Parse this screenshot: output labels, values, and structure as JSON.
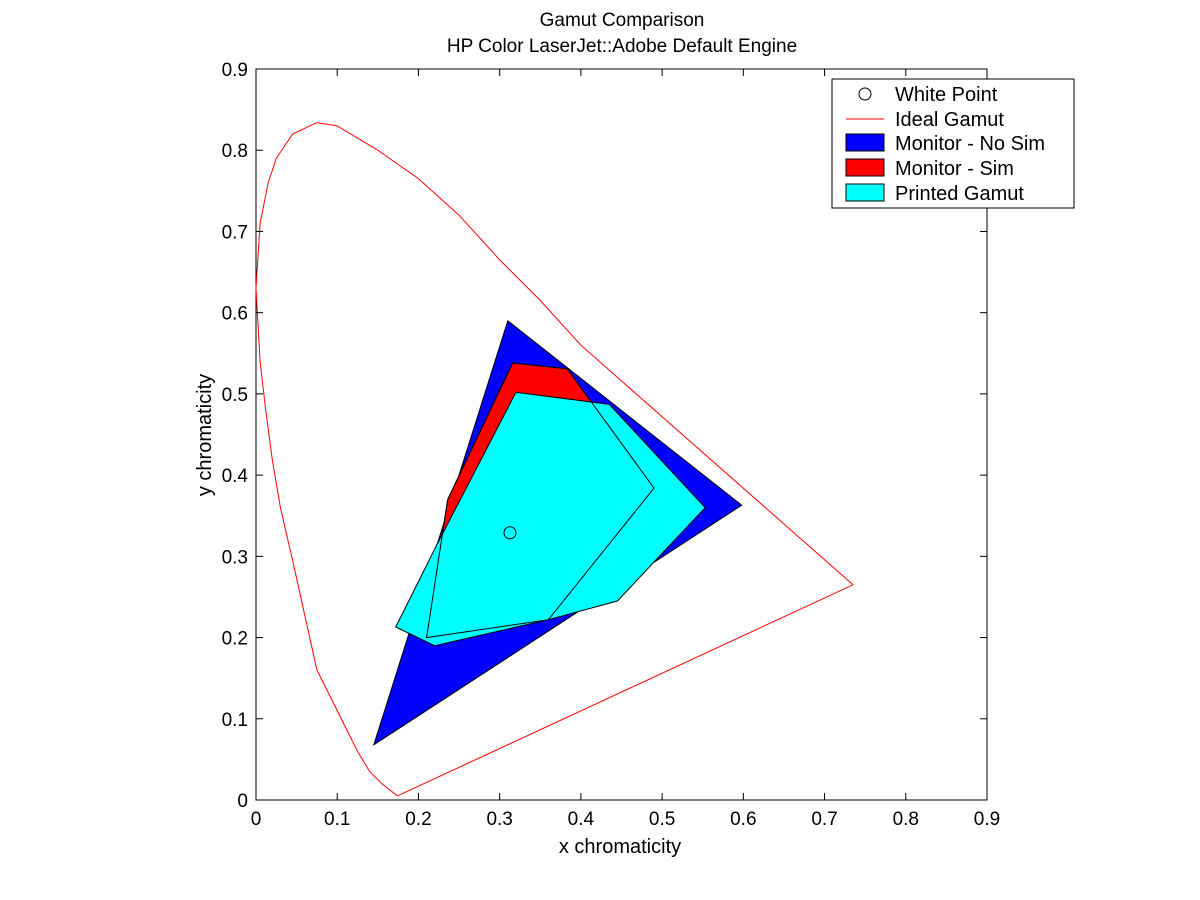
{
  "chart_data": {
    "type": "area",
    "title": "Gamut Comparison",
    "subtitle": "HP Color LaserJet::Adobe Default Engine",
    "xlabel": "x chromaticity",
    "ylabel": "y chromaticity",
    "xlim": [
      0,
      0.9
    ],
    "ylim": [
      0,
      0.9
    ],
    "xticks": [
      "0",
      "0.1",
      "0.2",
      "0.3",
      "0.4",
      "0.5",
      "0.6",
      "0.7",
      "0.8",
      "0.9"
    ],
    "yticks": [
      "0",
      "0.1",
      "0.2",
      "0.3",
      "0.4",
      "0.5",
      "0.6",
      "0.7",
      "0.8",
      "0.9"
    ],
    "grid": false,
    "legend_position": "top-right",
    "series": [
      {
        "name": "White Point",
        "kind": "marker",
        "color": "#000000",
        "points": [
          [
            0.3127,
            0.329
          ]
        ]
      },
      {
        "name": "Ideal Gamut",
        "kind": "line",
        "color": "#ff0000",
        "points": [
          [
            0.1741,
            0.005
          ],
          [
            0.155,
            0.02
          ],
          [
            0.14,
            0.035
          ],
          [
            0.125,
            0.06
          ],
          [
            0.11,
            0.09
          ],
          [
            0.09,
            0.13
          ],
          [
            0.075,
            0.16
          ],
          [
            0.045,
            0.295
          ],
          [
            0.03,
            0.36
          ],
          [
            0.02,
            0.42
          ],
          [
            0.012,
            0.48
          ],
          [
            0.005,
            0.54
          ],
          [
            0.0,
            0.63
          ],
          [
            0.005,
            0.71
          ],
          [
            0.015,
            0.76
          ],
          [
            0.025,
            0.79
          ],
          [
            0.045,
            0.82
          ],
          [
            0.075,
            0.834
          ],
          [
            0.1,
            0.83
          ],
          [
            0.15,
            0.8
          ],
          [
            0.2,
            0.765
          ],
          [
            0.25,
            0.72
          ],
          [
            0.3,
            0.665
          ],
          [
            0.35,
            0.615
          ],
          [
            0.4,
            0.56
          ],
          [
            0.735,
            0.265
          ],
          [
            0.1741,
            0.005
          ]
        ]
      },
      {
        "name": "Monitor - No Sim",
        "kind": "polygon",
        "color": "#0000ff",
        "points": [
          [
            0.31,
            0.59
          ],
          [
            0.598,
            0.363
          ],
          [
            0.145,
            0.068
          ]
        ]
      },
      {
        "name": "Monitor - Sim",
        "kind": "polygon",
        "color": "#ff0000",
        "points": [
          [
            0.316,
            0.538
          ],
          [
            0.383,
            0.531
          ],
          [
            0.49,
            0.384
          ],
          [
            0.36,
            0.222
          ],
          [
            0.21,
            0.2
          ],
          [
            0.236,
            0.37
          ]
        ]
      },
      {
        "name": "Printed Gamut",
        "kind": "polygon",
        "color": "#00ffff",
        "points": [
          [
            0.32,
            0.502
          ],
          [
            0.435,
            0.487
          ],
          [
            0.553,
            0.36
          ],
          [
            0.445,
            0.245
          ],
          [
            0.36,
            0.222
          ],
          [
            0.22,
            0.19
          ],
          [
            0.172,
            0.213
          ],
          [
            0.222,
            0.313
          ]
        ]
      }
    ]
  },
  "legend": {
    "items": [
      "White Point",
      "Ideal Gamut",
      "Monitor - No Sim",
      "Monitor - Sim",
      "Printed Gamut"
    ]
  }
}
